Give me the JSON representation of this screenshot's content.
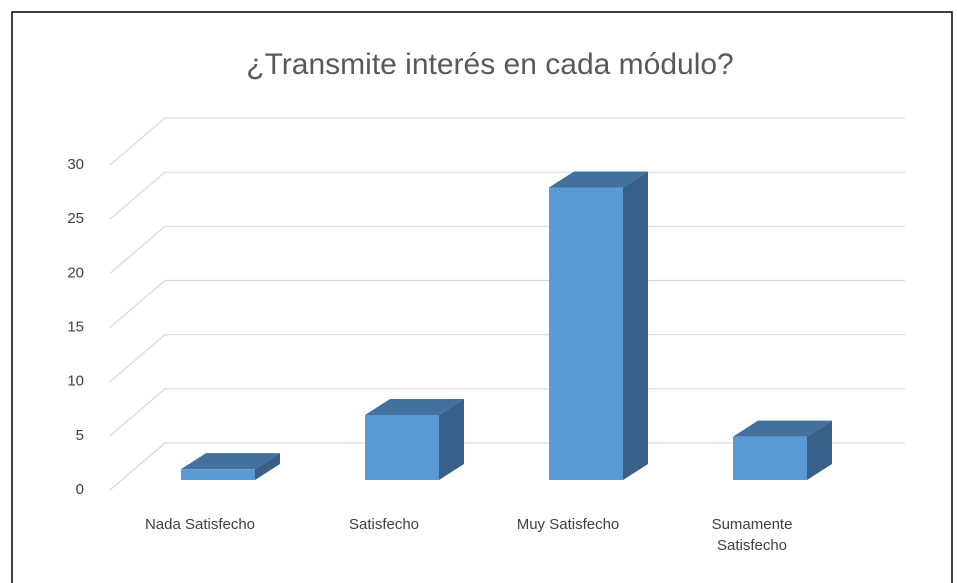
{
  "chart_data": {
    "type": "bar3d",
    "title": "¿Transmite interés en cada módulo?",
    "categories": [
      "Nada Satisfecho",
      "Satisfecho",
      "Muy Satisfecho",
      "Sumamente Satisfecho"
    ],
    "values": [
      1,
      6,
      27,
      4
    ],
    "color": "#5b9bd5",
    "ylim": [
      0,
      30
    ],
    "yticks": [
      0,
      5,
      10,
      15,
      20,
      25,
      30
    ],
    "grid": true
  }
}
